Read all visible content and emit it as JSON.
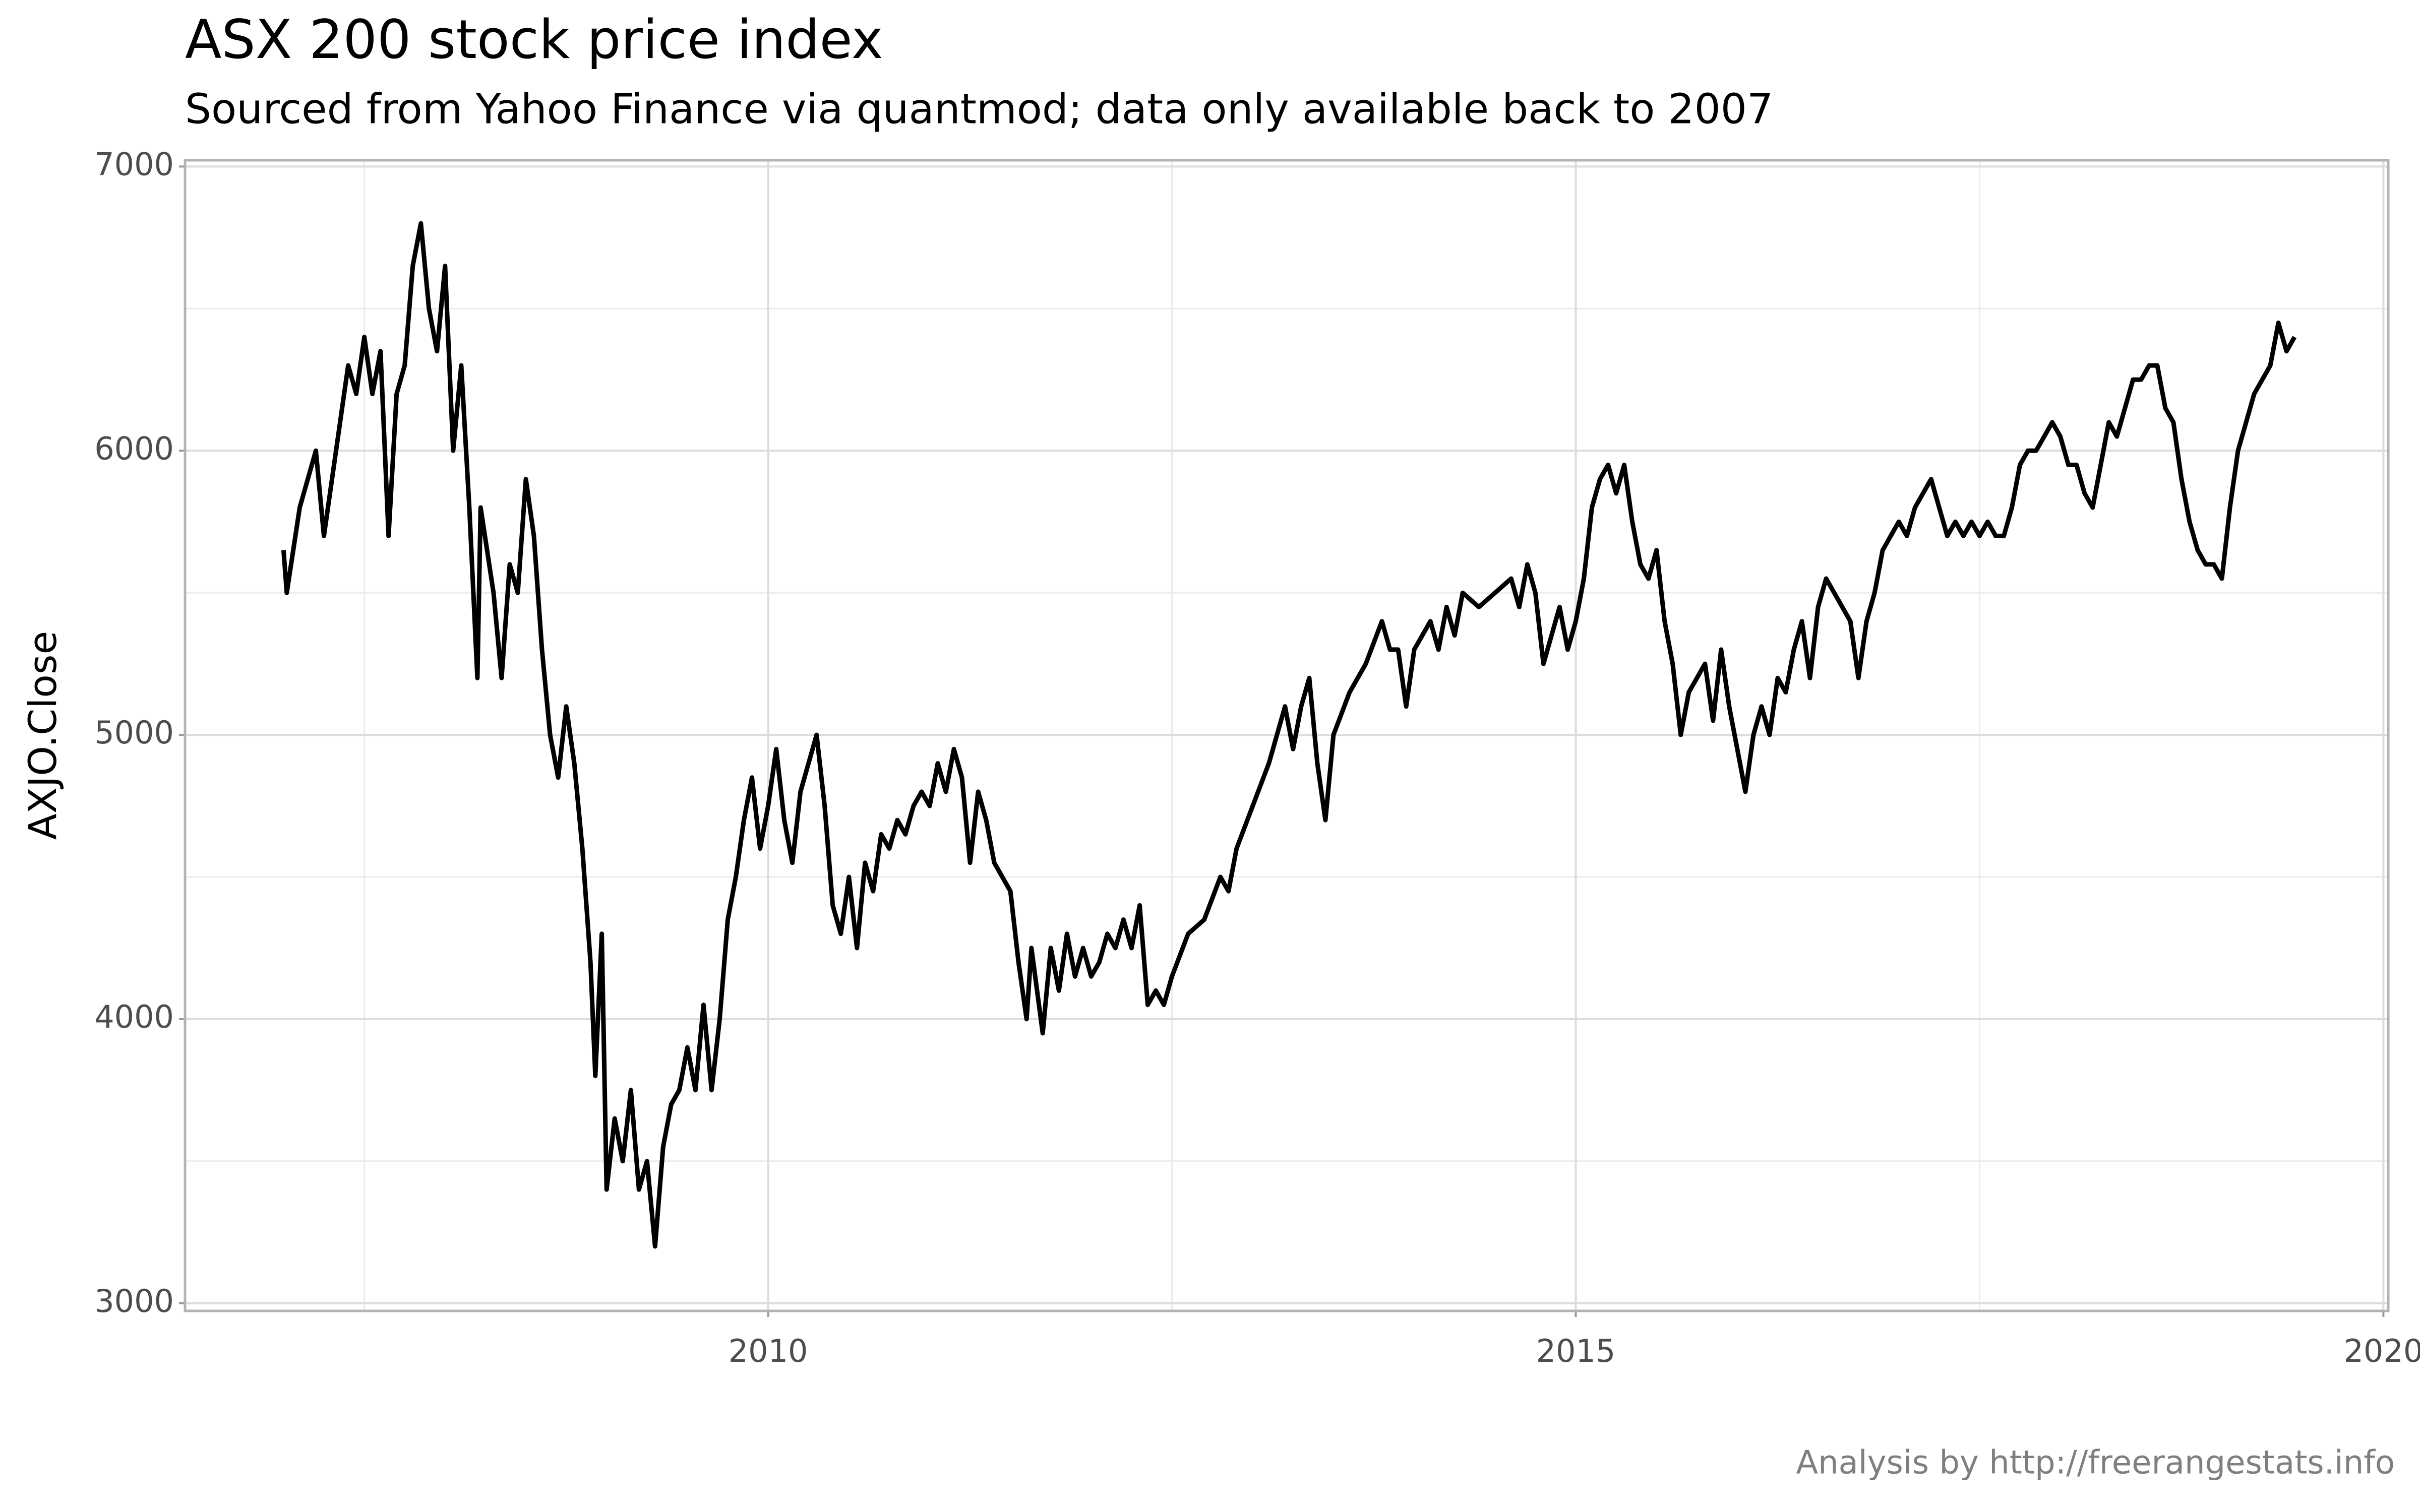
{
  "chart_data": {
    "type": "line",
    "title": "ASX 200 stock price index",
    "subtitle": "Sourced from Yahoo Finance via quantmod; data only available back to 2007",
    "y_label": "AXJO.Close",
    "caption": "Analysis by http://freerangestats.info",
    "color": "#000000",
    "grid": true,
    "xlim": [
      2006.39,
      2020.03
    ],
    "xticks": [
      2010,
      2015,
      2020
    ],
    "ylim": [
      2973,
      7022
    ],
    "yticks": [
      3000,
      4000,
      5000,
      6000,
      7000
    ],
    "x": [
      2007.0,
      2007.02,
      2007.1,
      2007.2,
      2007.25,
      2007.3,
      2007.4,
      2007.45,
      2007.5,
      2007.55,
      2007.6,
      2007.65,
      2007.7,
      2007.75,
      2007.8,
      2007.85,
      2007.9,
      2007.95,
      2008.0,
      2008.05,
      2008.1,
      2008.15,
      2008.2,
      2008.22,
      2008.3,
      2008.35,
      2008.4,
      2008.45,
      2008.5,
      2008.55,
      2008.6,
      2008.65,
      2008.7,
      2008.75,
      2008.8,
      2008.85,
      2008.9,
      2008.93,
      2008.97,
      2009.0,
      2009.05,
      2009.1,
      2009.15,
      2009.2,
      2009.25,
      2009.3,
      2009.35,
      2009.4,
      2009.45,
      2009.5,
      2009.55,
      2009.6,
      2009.65,
      2009.7,
      2009.75,
      2009.8,
      2009.85,
      2009.9,
      2009.95,
      2010.0,
      2010.05,
      2010.1,
      2010.15,
      2010.2,
      2010.25,
      2010.3,
      2010.35,
      2010.4,
      2010.45,
      2010.5,
      2010.55,
      2010.6,
      2010.65,
      2010.7,
      2010.75,
      2010.8,
      2010.85,
      2010.9,
      2010.95,
      2011.0,
      2011.05,
      2011.1,
      2011.15,
      2011.2,
      2011.25,
      2011.3,
      2011.35,
      2011.4,
      2011.45,
      2011.5,
      2011.55,
      2011.6,
      2011.63,
      2011.7,
      2011.75,
      2011.8,
      2011.85,
      2011.9,
      2011.95,
      2012.0,
      2012.05,
      2012.1,
      2012.15,
      2012.2,
      2012.25,
      2012.3,
      2012.35,
      2012.4,
      2012.45,
      2012.5,
      2012.6,
      2012.7,
      2012.8,
      2012.85,
      2012.9,
      2013.0,
      2013.1,
      2013.2,
      2013.25,
      2013.3,
      2013.35,
      2013.4,
      2013.45,
      2013.5,
      2013.6,
      2013.7,
      2013.8,
      2013.85,
      2013.9,
      2013.95,
      2014.0,
      2014.1,
      2014.15,
      2014.2,
      2014.25,
      2014.3,
      2014.4,
      2014.5,
      2014.6,
      2014.65,
      2014.7,
      2014.75,
      2014.8,
      2014.85,
      2014.9,
      2014.95,
      2015.0,
      2015.05,
      2015.1,
      2015.15,
      2015.2,
      2015.25,
      2015.3,
      2015.35,
      2015.4,
      2015.45,
      2015.5,
      2015.55,
      2015.6,
      2015.65,
      2015.7,
      2015.75,
      2015.8,
      2015.85,
      2015.9,
      2015.95,
      2016.0,
      2016.05,
      2016.1,
      2016.15,
      2016.2,
      2016.25,
      2016.3,
      2016.35,
      2016.4,
      2016.45,
      2016.5,
      2016.55,
      2016.6,
      2016.65,
      2016.7,
      2016.75,
      2016.8,
      2016.85,
      2016.9,
      2016.95,
      2017.0,
      2017.05,
      2017.1,
      2017.15,
      2017.2,
      2017.25,
      2017.3,
      2017.35,
      2017.4,
      2017.45,
      2017.5,
      2017.55,
      2017.6,
      2017.65,
      2017.7,
      2017.75,
      2017.8,
      2017.85,
      2017.9,
      2017.95,
      2018.0,
      2018.05,
      2018.1,
      2018.15,
      2018.2,
      2018.25,
      2018.3,
      2018.35,
      2018.4,
      2018.45,
      2018.5,
      2018.55,
      2018.6,
      2018.65,
      2018.7,
      2018.75,
      2018.8,
      2018.85,
      2018.9,
      2018.95,
      2019.0,
      2019.05,
      2019.1,
      2019.15,
      2019.2,
      2019.25,
      2019.3,
      2019.35,
      2019.4,
      2019.45
    ],
    "values": [
      5650,
      5500,
      5800,
      6000,
      5700,
      5900,
      6300,
      6200,
      6400,
      6200,
      6350,
      5700,
      6200,
      6300,
      6650,
      6800,
      6500,
      6350,
      6650,
      6000,
      6300,
      5800,
      5200,
      5800,
      5500,
      5200,
      5600,
      5500,
      5900,
      5700,
      5300,
      5000,
      4850,
      5100,
      4900,
      4600,
      4200,
      3800,
      4300,
      3400,
      3650,
      3500,
      3750,
      3400,
      3500,
      3200,
      3550,
      3700,
      3750,
      3900,
      3750,
      4050,
      3750,
      4000,
      4350,
      4500,
      4700,
      4850,
      4600,
      4750,
      4950,
      4700,
      4550,
      4800,
      4900,
      5000,
      4750,
      4400,
      4300,
      4500,
      4250,
      4550,
      4450,
      4650,
      4600,
      4700,
      4650,
      4750,
      4800,
      4750,
      4900,
      4800,
      4950,
      4850,
      4550,
      4800,
      4700,
      4550,
      4500,
      4450,
      4200,
      4000,
      4250,
      3950,
      4250,
      4100,
      4300,
      4150,
      4250,
      4150,
      4200,
      4300,
      4250,
      4350,
      4250,
      4400,
      4050,
      4100,
      4050,
      4150,
      4300,
      4350,
      4500,
      4450,
      4600,
      4750,
      4900,
      5100,
      4950,
      5100,
      5200,
      4900,
      4700,
      5000,
      5150,
      5250,
      5400,
      5300,
      5300,
      5100,
      5300,
      5400,
      5300,
      5450,
      5350,
      5500,
      5450,
      5500,
      5550,
      5450,
      5600,
      5500,
      5250,
      5350,
      5450,
      5300,
      5400,
      5550,
      5800,
      5900,
      5950,
      5850,
      5950,
      5750,
      5600,
      5550,
      5650,
      5400,
      5250,
      5000,
      5150,
      5200,
      5250,
      5050,
      5300,
      5100,
      4950,
      4800,
      5000,
      5100,
      5000,
      5200,
      5150,
      5300,
      5400,
      5200,
      5450,
      5550,
      5500,
      5450,
      5400,
      5200,
      5400,
      5500,
      5650,
      5700,
      5750,
      5700,
      5800,
      5850,
      5900,
      5800,
      5700,
      5750,
      5700,
      5750,
      5700,
      5750,
      5700,
      5700,
      5800,
      5950,
      6000,
      6000,
      6050,
      6100,
      6050,
      5950,
      5950,
      5850,
      5800,
      5950,
      6100,
      6050,
      6150,
      6250,
      6250,
      6300,
      6300,
      6150,
      6100,
      5900,
      5750,
      5650,
      5600,
      5600,
      5550,
      5800,
      6000,
      6100,
      6200,
      6250,
      6300,
      6450,
      6350,
      6400
    ]
  }
}
